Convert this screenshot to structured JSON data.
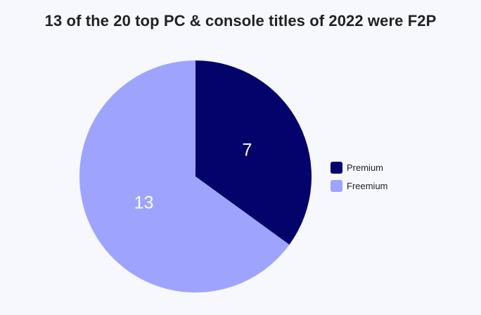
{
  "chart_data": {
    "type": "pie",
    "title": "13 of the 20 top PC & console titles of 2022 were F2P",
    "categories": [
      "Premium",
      "Freemium"
    ],
    "values": [
      7,
      13
    ],
    "colors": [
      "#03036b",
      "#9ea4fe"
    ],
    "data_labels": [
      "7",
      "13"
    ],
    "label_color": "#ffffff",
    "start_angle": "12 o'clock",
    "direction": "clockwise",
    "legend": {
      "placement": "right",
      "entries": [
        {
          "label": "Premium",
          "color": "#03036b"
        },
        {
          "label": "Freemium",
          "color": "#9ea4fe"
        }
      ]
    }
  }
}
